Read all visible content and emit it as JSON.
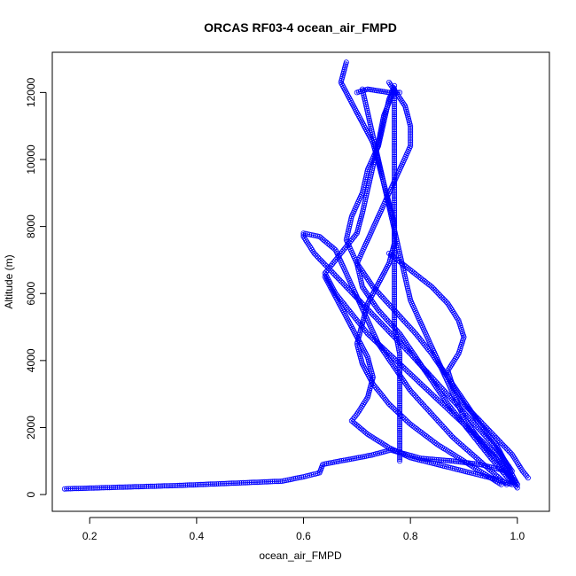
{
  "chart_data": {
    "type": "scatter",
    "title": "ORCAS RF03-4 ocean_air_FMPD",
    "xlabel": "ocean_air_FMPD",
    "ylabel": "Altitude (m)",
    "xlim": [
      0.13,
      1.06
    ],
    "ylim": [
      -500,
      13200
    ],
    "xticks": [
      0.2,
      0.4,
      0.6,
      0.8,
      1.0
    ],
    "xtick_labels": [
      "0.2",
      "0.4",
      "0.6",
      "0.8",
      "1.0"
    ],
    "yticks": [
      0,
      2000,
      4000,
      6000,
      8000,
      10000,
      12000
    ],
    "ytick_labels": [
      "0",
      "2000",
      "4000",
      "6000",
      "8000",
      "10000",
      "12000"
    ],
    "grid": false,
    "color": "#0000ff",
    "marker": "open-circle",
    "series": [
      {
        "name": "",
        "segments": [
          {
            "points": [
              [
                0.153,
                170
              ],
              [
                0.365,
                270
              ],
              [
                0.56,
                400
              ],
              [
                0.6,
                530
              ],
              [
                0.63,
                650
              ],
              [
                0.636,
                900
              ],
              [
                0.668,
                1000
              ],
              [
                0.696,
                1080
              ],
              [
                0.728,
                1180
              ],
              [
                0.763,
                1330
              ],
              [
                0.82,
                1080
              ],
              [
                0.88,
                1000
              ],
              [
                0.93,
                900
              ],
              [
                0.98,
                700
              ],
              [
                1.0,
                300
              ]
            ]
          },
          {
            "points": [
              [
                1.0,
                300
              ],
              [
                0.98,
                900
              ],
              [
                0.96,
                1500
              ],
              [
                0.93,
                2100
              ],
              [
                0.9,
                2800
              ],
              [
                0.87,
                3500
              ],
              [
                0.84,
                4200
              ],
              [
                0.81,
                4800
              ],
              [
                0.77,
                5500
              ],
              [
                0.73,
                6200
              ],
              [
                0.7,
                6900
              ],
              [
                0.68,
                7600
              ],
              [
                0.69,
                8300
              ],
              [
                0.71,
                9000
              ],
              [
                0.72,
                9700
              ],
              [
                0.74,
                10400
              ],
              [
                0.75,
                11100
              ],
              [
                0.76,
                11800
              ],
              [
                0.77,
                12200
              ]
            ]
          },
          {
            "points": [
              [
                0.77,
                12100
              ],
              [
                0.75,
                11300
              ],
              [
                0.74,
                10500
              ],
              [
                0.73,
                9800
              ],
              [
                0.72,
                9100
              ],
              [
                0.71,
                8400
              ],
              [
                0.7,
                7800
              ],
              [
                0.67,
                7200
              ],
              [
                0.64,
                6600
              ],
              [
                0.66,
                6000
              ],
              [
                0.69,
                5400
              ],
              [
                0.72,
                4800
              ],
              [
                0.76,
                4200
              ],
              [
                0.8,
                3600
              ],
              [
                0.84,
                3000
              ],
              [
                0.88,
                2400
              ],
              [
                0.92,
                1800
              ],
              [
                0.96,
                1200
              ],
              [
                0.99,
                400
              ]
            ]
          },
          {
            "points": [
              [
                0.99,
                350
              ],
              [
                0.95,
                1100
              ],
              [
                0.91,
                1900
              ],
              [
                0.87,
                2700
              ],
              [
                0.84,
                3400
              ],
              [
                0.81,
                4100
              ],
              [
                0.78,
                4800
              ],
              [
                0.74,
                5500
              ],
              [
                0.71,
                6200
              ],
              [
                0.7,
                6900
              ],
              [
                0.72,
                7600
              ],
              [
                0.74,
                8300
              ],
              [
                0.76,
                9000
              ],
              [
                0.78,
                9700
              ],
              [
                0.8,
                10400
              ],
              [
                0.8,
                11000
              ],
              [
                0.79,
                11600
              ],
              [
                0.76,
                12300
              ]
            ]
          },
          {
            "points": [
              [
                0.71,
                12100
              ],
              [
                0.72,
                11400
              ],
              [
                0.73,
                10700
              ],
              [
                0.74,
                10000
              ],
              [
                0.75,
                9300
              ],
              [
                0.76,
                8600
              ],
              [
                0.77,
                7900
              ],
              [
                0.78,
                7200
              ],
              [
                0.79,
                6500
              ],
              [
                0.8,
                5800
              ],
              [
                0.82,
                5100
              ],
              [
                0.84,
                4400
              ],
              [
                0.86,
                3700
              ],
              [
                0.88,
                3000
              ],
              [
                0.9,
                2300
              ],
              [
                0.93,
                1600
              ],
              [
                0.97,
                900
              ],
              [
                1.0,
                200
              ]
            ]
          },
          {
            "points": [
              [
                0.98,
                300
              ],
              [
                0.93,
                1000
              ],
              [
                0.88,
                1700
              ],
              [
                0.84,
                2400
              ],
              [
                0.8,
                3100
              ],
              [
                0.77,
                3800
              ],
              [
                0.74,
                4500
              ],
              [
                0.72,
                5200
              ],
              [
                0.7,
                5900
              ],
              [
                0.68,
                6600
              ],
              [
                0.66,
                7300
              ],
              [
                0.63,
                7700
              ],
              [
                0.6,
                7800
              ],
              [
                0.6,
                7700
              ],
              [
                0.62,
                7200
              ],
              [
                0.65,
                6700
              ],
              [
                0.68,
                6200
              ],
              [
                0.71,
                5700
              ],
              [
                0.74,
                5200
              ],
              [
                0.77,
                4700
              ],
              [
                0.8,
                4200
              ],
              [
                0.84,
                3500
              ],
              [
                0.88,
                2800
              ],
              [
                0.92,
                2100
              ],
              [
                0.96,
                1400
              ],
              [
                0.99,
                700
              ]
            ]
          },
          {
            "points": [
              [
                0.68,
                12900
              ],
              [
                0.67,
                12300
              ],
              [
                0.69,
                11700
              ],
              [
                0.71,
                11100
              ],
              [
                0.73,
                10500
              ],
              [
                0.74,
                9900
              ],
              [
                0.75,
                9300
              ],
              [
                0.76,
                8700
              ],
              [
                0.77,
                8100
              ],
              [
                0.77,
                7500
              ],
              [
                0.76,
                6900
              ],
              [
                0.74,
                6300
              ],
              [
                0.72,
                5700
              ],
              [
                0.71,
                5100
              ],
              [
                0.7,
                4500
              ],
              [
                0.71,
                3900
              ],
              [
                0.73,
                3300
              ],
              [
                0.76,
                2700
              ],
              [
                0.8,
                2100
              ],
              [
                0.85,
                1500
              ],
              [
                0.91,
                900
              ],
              [
                0.97,
                300
              ]
            ]
          },
          {
            "points": [
              [
                0.64,
                6500
              ],
              [
                0.66,
                5900
              ],
              [
                0.68,
                5300
              ],
              [
                0.7,
                4700
              ],
              [
                0.72,
                4100
              ],
              [
                0.73,
                3500
              ],
              [
                0.72,
                2900
              ],
              [
                0.7,
                2400
              ],
              [
                0.69,
                2200
              ],
              [
                0.72,
                1800
              ],
              [
                0.76,
                1400
              ],
              [
                0.8,
                1100
              ],
              [
                0.85,
                900
              ],
              [
                0.9,
                700
              ],
              [
                0.95,
                500
              ],
              [
                0.99,
                300
              ]
            ]
          },
          {
            "points": [
              [
                0.78,
                1000
              ],
              [
                0.78,
                1800
              ],
              [
                0.78,
                2600
              ],
              [
                0.78,
                3400
              ],
              [
                0.78,
                4200
              ],
              [
                0.77,
                5000
              ],
              [
                0.77,
                5800
              ],
              [
                0.77,
                6600
              ],
              [
                0.77,
                7400
              ],
              [
                0.77,
                8200
              ],
              [
                0.77,
                9000
              ],
              [
                0.77,
                9800
              ],
              [
                0.77,
                10600
              ],
              [
                0.77,
                11400
              ],
              [
                0.77,
                12000
              ]
            ]
          },
          {
            "points": [
              [
                0.7,
                12000
              ],
              [
                0.72,
                12100
              ],
              [
                0.74,
                12050
              ],
              [
                0.76,
                12000
              ],
              [
                0.78,
                12000
              ]
            ]
          },
          {
            "points": [
              [
                0.76,
                7200
              ],
              [
                0.8,
                6700
              ],
              [
                0.84,
                6200
              ],
              [
                0.87,
                5700
              ],
              [
                0.89,
                5200
              ],
              [
                0.9,
                4700
              ],
              [
                0.89,
                4200
              ],
              [
                0.87,
                3700
              ],
              [
                0.88,
                3200
              ],
              [
                0.9,
                2700
              ],
              [
                0.93,
                2200
              ],
              [
                0.96,
                1700
              ],
              [
                0.99,
                1200
              ],
              [
                1.01,
                700
              ],
              [
                1.02,
                500
              ]
            ]
          }
        ]
      }
    ]
  }
}
